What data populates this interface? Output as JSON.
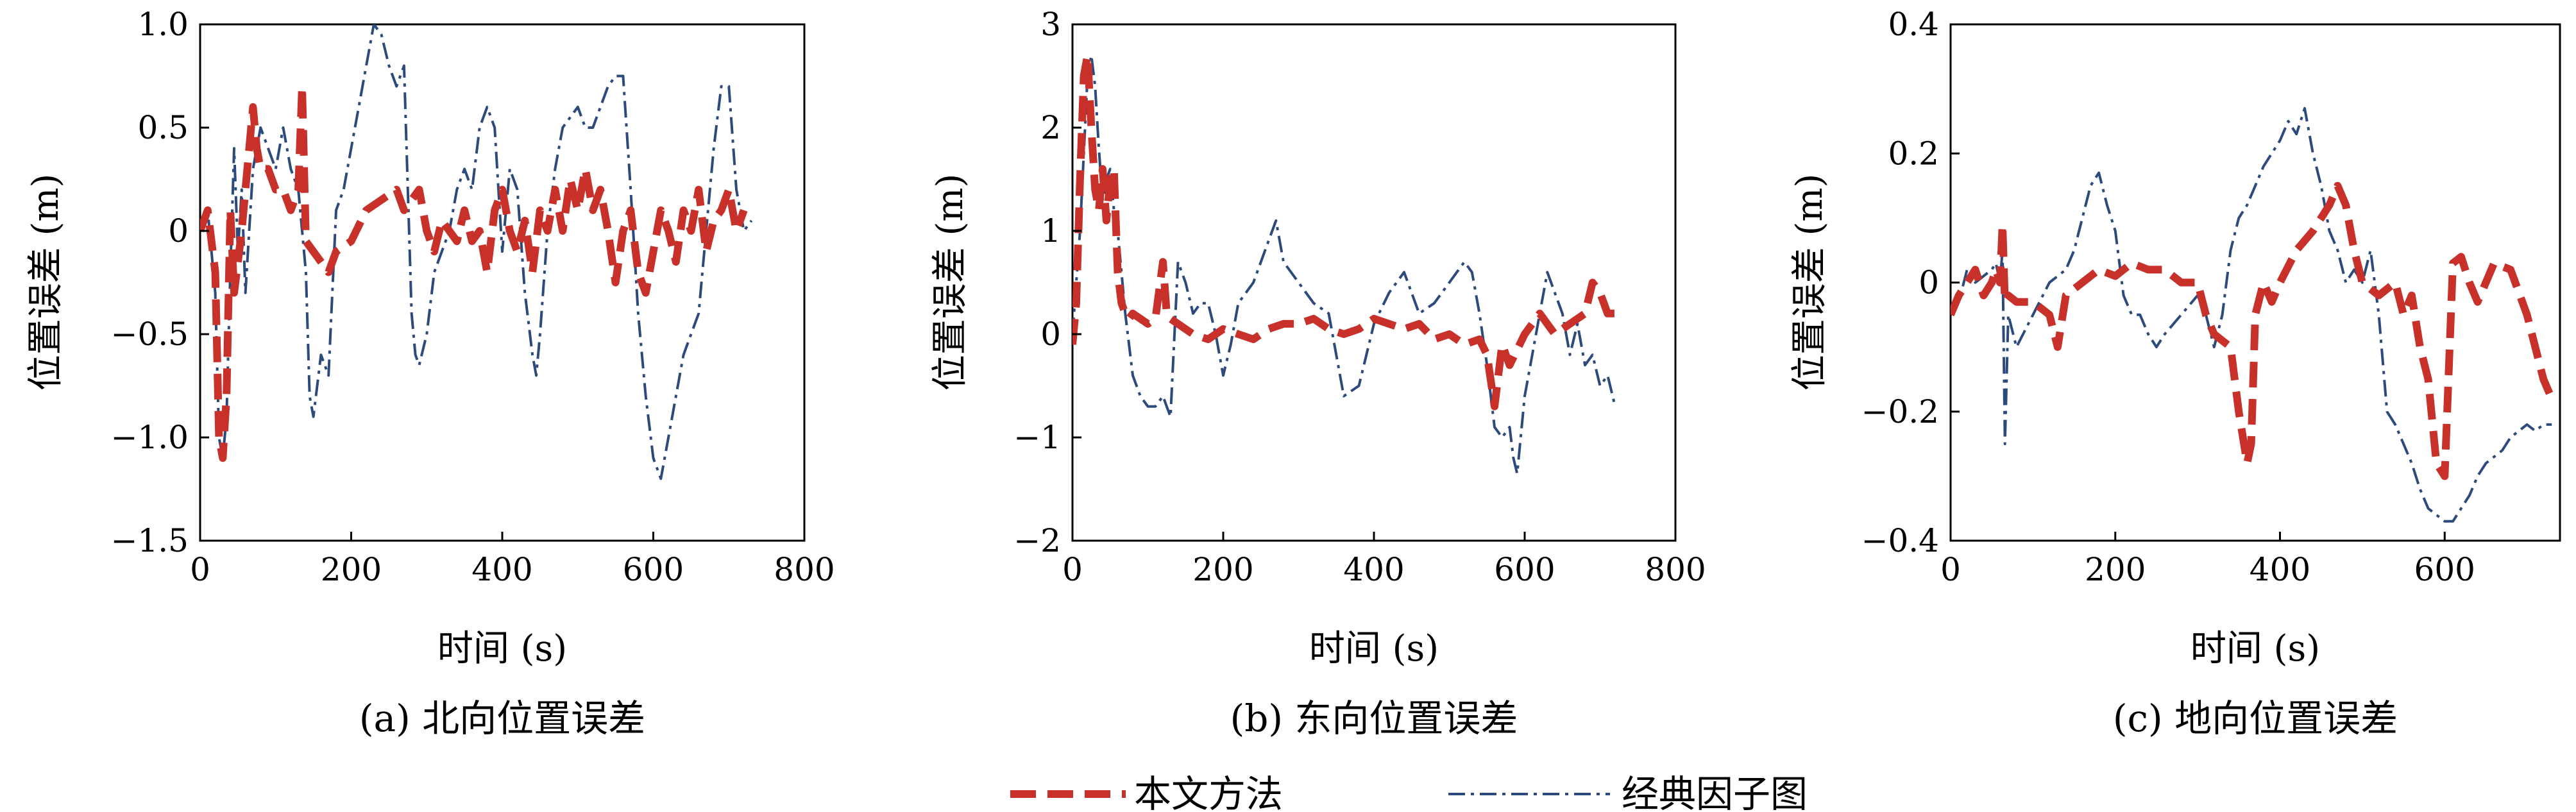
{
  "legend": [
    {
      "name": "本文方法",
      "color": "#c8302a",
      "style": "dashed-thick"
    },
    {
      "name": "经典因子图",
      "color": "#2c4a7c",
      "style": "dash-dot-thin"
    }
  ],
  "chart_data": [
    {
      "type": "line",
      "caption": "(a) 北向位置误差",
      "xlabel": "时间 (s)",
      "ylabel": "位置误差 (m)",
      "xlim": [
        0,
        800
      ],
      "ylim": [
        -1.5,
        1.0
      ],
      "xticks": [
        0,
        200,
        400,
        600,
        800
      ],
      "yticks": [
        -1.5,
        -1.0,
        -0.5,
        0,
        0.5,
        1.0
      ],
      "ytick_labels": [
        "−1.5",
        "−1.0",
        "−0.5",
        "0",
        "0.5",
        "1.0"
      ],
      "grid": false,
      "series": [
        {
          "name": "本文方法",
          "x": [
            0,
            10,
            20,
            25,
            30,
            35,
            40,
            45,
            55,
            60,
            70,
            75,
            80,
            90,
            100,
            110,
            120,
            130,
            135,
            140,
            150,
            160,
            170,
            180,
            200,
            220,
            240,
            260,
            270,
            280,
            290,
            300,
            310,
            320,
            330,
            340,
            350,
            360,
            370,
            380,
            390,
            400,
            410,
            420,
            430,
            440,
            450,
            460,
            470,
            480,
            490,
            500,
            510,
            520,
            530,
            540,
            550,
            560,
            570,
            580,
            590,
            600,
            610,
            620,
            630,
            640,
            650,
            660,
            670,
            680,
            690,
            700,
            710,
            720
          ],
          "y": [
            0.0,
            0.1,
            -0.2,
            -1.0,
            -1.1,
            -0.8,
            0.1,
            -0.3,
            0.0,
            0.2,
            0.6,
            0.4,
            0.3,
            0.3,
            0.2,
            0.2,
            0.1,
            0.2,
            0.7,
            -0.05,
            -0.1,
            -0.15,
            -0.2,
            -0.1,
            -0.05,
            0.1,
            0.15,
            0.2,
            0.1,
            0.15,
            0.2,
            0.0,
            -0.1,
            0.05,
            0.0,
            -0.05,
            0.1,
            -0.05,
            0.0,
            -0.2,
            0.1,
            0.2,
            0.0,
            -0.1,
            0.05,
            -0.2,
            0.1,
            0.0,
            0.2,
            0.0,
            0.25,
            0.1,
            0.3,
            0.1,
            0.2,
            0.0,
            -0.25,
            0.0,
            0.1,
            -0.2,
            -0.3,
            -0.1,
            0.1,
            0.0,
            -0.15,
            0.1,
            0.0,
            0.2,
            -0.1,
            0.05,
            0.1,
            0.2,
            0.0,
            0.1
          ]
        },
        {
          "name": "经典因子图",
          "x": [
            0,
            10,
            20,
            25,
            30,
            35,
            40,
            45,
            50,
            55,
            60,
            70,
            80,
            90,
            100,
            110,
            120,
            130,
            140,
            145,
            150,
            160,
            170,
            180,
            190,
            200,
            210,
            220,
            230,
            240,
            250,
            260,
            270,
            280,
            285,
            290,
            300,
            310,
            320,
            330,
            340,
            350,
            360,
            370,
            380,
            390,
            400,
            410,
            420,
            430,
            440,
            445,
            450,
            460,
            470,
            480,
            490,
            500,
            510,
            520,
            530,
            540,
            550,
            560,
            570,
            575,
            580,
            590,
            600,
            610,
            620,
            630,
            640,
            650,
            660,
            670,
            680,
            690,
            700,
            710,
            720,
            730
          ],
          "y": [
            0.0,
            0.1,
            -0.3,
            -1.0,
            -1.1,
            -0.9,
            -0.2,
            0.4,
            -0.1,
            0.2,
            -0.3,
            0.3,
            0.5,
            0.4,
            0.3,
            0.5,
            0.3,
            0.2,
            -0.2,
            -0.8,
            -0.9,
            -0.6,
            -0.7,
            0.1,
            0.2,
            0.4,
            0.6,
            0.8,
            1.0,
            0.95,
            0.8,
            0.7,
            0.8,
            -0.4,
            -0.6,
            -0.65,
            -0.5,
            -0.2,
            -0.1,
            0.0,
            0.2,
            0.3,
            0.2,
            0.5,
            0.6,
            0.5,
            -0.1,
            0.3,
            0.2,
            -0.3,
            -0.6,
            -0.7,
            -0.5,
            0.0,
            0.3,
            0.5,
            0.55,
            0.6,
            0.5,
            0.5,
            0.6,
            0.7,
            0.75,
            0.75,
            0.2,
            -0.1,
            -0.4,
            -0.8,
            -1.1,
            -1.2,
            -1.0,
            -0.8,
            -0.6,
            -0.5,
            -0.4,
            0.0,
            0.4,
            0.7,
            0.7,
            0.2,
            0.0,
            0.05
          ]
        }
      ]
    },
    {
      "type": "line",
      "caption": "(b) 东向位置误差",
      "xlabel": "时间 (s)",
      "ylabel": "位置误差 (m)",
      "xlim": [
        0,
        800
      ],
      "ylim": [
        -2,
        3
      ],
      "xticks": [
        0,
        200,
        400,
        600,
        800
      ],
      "yticks": [
        -2,
        -1,
        0,
        1,
        2,
        3
      ],
      "ytick_labels": [
        "−2",
        "−1",
        "0",
        "1",
        "2",
        "3"
      ],
      "grid": false,
      "series": [
        {
          "name": "本文方法",
          "x": [
            0,
            5,
            10,
            15,
            20,
            25,
            30,
            35,
            40,
            45,
            50,
            55,
            60,
            65,
            70,
            75,
            80,
            90,
            100,
            110,
            120,
            125,
            130,
            140,
            160,
            180,
            200,
            220,
            240,
            260,
            280,
            300,
            320,
            340,
            360,
            380,
            400,
            420,
            440,
            460,
            480,
            500,
            520,
            540,
            550,
            560,
            570,
            580,
            600,
            620,
            640,
            660,
            680,
            690,
            700,
            710,
            720
          ],
          "y": [
            -0.1,
            0.3,
            1.5,
            2.5,
            2.7,
            2.0,
            1.4,
            1.2,
            1.6,
            1.1,
            1.5,
            1.6,
            0.6,
            0.3,
            0.2,
            0.15,
            0.2,
            0.15,
            0.1,
            0.15,
            0.7,
            0.2,
            0.15,
            0.1,
            0.0,
            -0.05,
            0.05,
            0.0,
            -0.05,
            0.05,
            0.1,
            0.1,
            0.15,
            0.05,
            0.0,
            0.05,
            0.15,
            0.1,
            0.05,
            0.1,
            -0.05,
            0.0,
            -0.1,
            -0.05,
            -0.2,
            -0.7,
            -0.1,
            -0.3,
            0.0,
            0.2,
            0.0,
            0.1,
            0.2,
            0.5,
            0.4,
            0.2,
            0.2
          ]
        },
        {
          "name": "经典因子图",
          "x": [
            0,
            10,
            20,
            25,
            30,
            35,
            40,
            45,
            50,
            55,
            60,
            70,
            80,
            90,
            100,
            110,
            120,
            130,
            140,
            150,
            160,
            170,
            180,
            190,
            200,
            210,
            220,
            240,
            260,
            270,
            280,
            300,
            320,
            340,
            360,
            380,
            400,
            420,
            440,
            460,
            480,
            500,
            520,
            530,
            540,
            550,
            560,
            570,
            580,
            585,
            590,
            600,
            610,
            620,
            630,
            640,
            650,
            660,
            670,
            680,
            690,
            700,
            710,
            720
          ],
          "y": [
            0.0,
            1.0,
            2.5,
            2.7,
            2.4,
            1.8,
            1.3,
            1.5,
            1.6,
            1.2,
            1.0,
            0.2,
            -0.4,
            -0.6,
            -0.7,
            -0.7,
            -0.6,
            -0.8,
            0.7,
            0.5,
            0.2,
            0.3,
            0.3,
            0.0,
            -0.4,
            -0.1,
            0.3,
            0.5,
            0.9,
            1.1,
            0.7,
            0.5,
            0.3,
            0.2,
            -0.6,
            -0.5,
            0.1,
            0.4,
            0.6,
            0.2,
            0.3,
            0.5,
            0.7,
            0.6,
            0.2,
            -0.3,
            -0.9,
            -1.0,
            -0.9,
            -1.2,
            -1.35,
            -0.6,
            -0.2,
            0.2,
            0.6,
            0.4,
            0.2,
            -0.2,
            0.1,
            -0.3,
            -0.2,
            -0.5,
            -0.4,
            -0.7
          ]
        }
      ]
    },
    {
      "type": "line",
      "caption": "(c) 地向位置误差",
      "xlabel": "时间 (s)",
      "ylabel": "位置误差 (m)",
      "xlim": [
        0,
        740
      ],
      "ylim": [
        -0.4,
        0.4
      ],
      "xticks": [
        0,
        200,
        400,
        600
      ],
      "yticks": [
        -0.4,
        -0.2,
        0,
        0.2,
        0.4
      ],
      "ytick_labels": [
        "−0.4",
        "−0.2",
        "0",
        "0.2",
        "0.4"
      ],
      "grid": false,
      "series": [
        {
          "name": "本文方法",
          "x": [
            0,
            10,
            20,
            30,
            40,
            50,
            55,
            60,
            63,
            66,
            70,
            80,
            100,
            120,
            130,
            140,
            160,
            180,
            200,
            220,
            240,
            260,
            280,
            300,
            310,
            320,
            330,
            340,
            350,
            360,
            365,
            370,
            380,
            390,
            400,
            420,
            440,
            460,
            470,
            480,
            490,
            500,
            520,
            540,
            550,
            560,
            570,
            580,
            590,
            600,
            610,
            620,
            630,
            640,
            660,
            680,
            700,
            720,
            730
          ],
          "y": [
            -0.05,
            -0.02,
            0.0,
            0.02,
            -0.02,
            0.0,
            0.02,
            0.0,
            0.09,
            -0.03,
            -0.02,
            -0.03,
            -0.03,
            -0.05,
            -0.1,
            -0.02,
            0.0,
            0.02,
            0.01,
            0.03,
            0.02,
            0.02,
            0.0,
            0.0,
            -0.05,
            -0.08,
            -0.09,
            -0.1,
            -0.2,
            -0.28,
            -0.25,
            -0.05,
            0.0,
            -0.03,
            0.0,
            0.05,
            0.08,
            0.12,
            0.15,
            0.12,
            0.05,
            0.0,
            -0.02,
            0.0,
            -0.05,
            -0.02,
            -0.1,
            -0.15,
            -0.28,
            -0.3,
            0.03,
            0.04,
            0.0,
            -0.03,
            0.03,
            0.02,
            -0.05,
            -0.15,
            -0.18
          ]
        },
        {
          "name": "经典因子图",
          "x": [
            0,
            10,
            20,
            30,
            40,
            50,
            55,
            60,
            63,
            66,
            70,
            80,
            100,
            120,
            140,
            150,
            160,
            170,
            180,
            190,
            200,
            210,
            220,
            230,
            240,
            250,
            260,
            280,
            300,
            310,
            320,
            330,
            340,
            350,
            360,
            370,
            380,
            390,
            400,
            410,
            420,
            430,
            440,
            450,
            460,
            470,
            480,
            490,
            500,
            510,
            520,
            530,
            540,
            550,
            560,
            570,
            580,
            590,
            600,
            610,
            620,
            630,
            640,
            650,
            660,
            670,
            680,
            690,
            700,
            710,
            720,
            730
          ],
          "y": [
            -0.05,
            -0.03,
            0.02,
            0.0,
            0.01,
            0.02,
            0.03,
            0.0,
            0.05,
            -0.25,
            -0.05,
            -0.1,
            -0.05,
            0.0,
            0.02,
            0.05,
            0.1,
            0.15,
            0.17,
            0.12,
            0.08,
            -0.02,
            -0.05,
            -0.05,
            -0.08,
            -0.1,
            -0.08,
            -0.05,
            -0.02,
            -0.05,
            -0.1,
            -0.05,
            0.05,
            0.1,
            0.12,
            0.15,
            0.18,
            0.2,
            0.22,
            0.25,
            0.23,
            0.27,
            0.2,
            0.15,
            0.08,
            0.05,
            0.0,
            0.02,
            0.0,
            0.05,
            -0.05,
            -0.2,
            -0.22,
            -0.25,
            -0.28,
            -0.32,
            -0.35,
            -0.36,
            -0.37,
            -0.37,
            -0.35,
            -0.33,
            -0.3,
            -0.28,
            -0.27,
            -0.26,
            -0.24,
            -0.23,
            -0.22,
            -0.23,
            -0.22,
            -0.22
          ]
        }
      ]
    }
  ]
}
